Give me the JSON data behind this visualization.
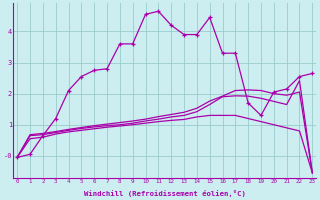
{
  "background_color": "#cceef0",
  "line_color": "#aa00aa",
  "grid_color": "#99cccc",
  "xlabel": "Windchill (Refroidissement éolien,°C)",
  "xticks": [
    0,
    1,
    2,
    3,
    4,
    5,
    6,
    7,
    8,
    9,
    10,
    11,
    12,
    13,
    14,
    15,
    16,
    17,
    18,
    19,
    20,
    21,
    22,
    23
  ],
  "yticks": [
    0,
    1,
    2,
    3,
    4
  ],
  "ylabels": [
    "-0",
    "1",
    "2",
    "3",
    "4"
  ],
  "ylim": [
    -0.7,
    4.9
  ],
  "xlim": [
    -0.3,
    23.3
  ],
  "curve1_x": [
    0,
    1,
    2,
    3,
    4,
    5,
    6,
    7,
    8,
    9,
    10,
    11,
    12,
    13,
    14,
    15,
    16,
    17,
    18,
    19,
    20,
    21,
    22,
    23
  ],
  "curve1_y": [
    -0.05,
    0.05,
    0.65,
    1.2,
    2.1,
    2.55,
    2.75,
    2.8,
    3.6,
    3.6,
    4.55,
    4.65,
    4.2,
    3.9,
    3.9,
    4.45,
    3.3,
    3.3,
    1.7,
    1.3,
    2.05,
    2.15,
    2.55,
    2.65
  ],
  "curve2_x": [
    0,
    1,
    2,
    3,
    4,
    5,
    6,
    7,
    8,
    9,
    10,
    11,
    12,
    13,
    14,
    15,
    16,
    17,
    18,
    19,
    20,
    21,
    22,
    23
  ],
  "curve2_y": [
    -0.05,
    0.65,
    0.68,
    0.75,
    0.82,
    0.88,
    0.93,
    0.97,
    1.0,
    1.05,
    1.12,
    1.18,
    1.25,
    1.3,
    1.42,
    1.65,
    1.9,
    1.93,
    1.92,
    1.85,
    1.75,
    1.65,
    2.42,
    -0.55
  ],
  "curve3_x": [
    0,
    1,
    2,
    3,
    4,
    5,
    6,
    7,
    8,
    9,
    10,
    11,
    12,
    13,
    14,
    15,
    16,
    17,
    18,
    19,
    20,
    21,
    22,
    23
  ],
  "curve3_y": [
    -0.05,
    0.68,
    0.72,
    0.78,
    0.85,
    0.91,
    0.97,
    1.02,
    1.07,
    1.12,
    1.18,
    1.26,
    1.33,
    1.4,
    1.53,
    1.76,
    1.92,
    2.1,
    2.12,
    2.1,
    2.0,
    1.95,
    2.05,
    -0.55
  ],
  "curve4_x": [
    0,
    1,
    2,
    3,
    4,
    5,
    6,
    7,
    8,
    9,
    10,
    11,
    12,
    13,
    14,
    15,
    16,
    17,
    18,
    19,
    20,
    21,
    22,
    23
  ],
  "curve4_y": [
    -0.05,
    0.55,
    0.6,
    0.7,
    0.77,
    0.82,
    0.87,
    0.92,
    0.96,
    1.0,
    1.05,
    1.1,
    1.14,
    1.17,
    1.25,
    1.3,
    1.3,
    1.3,
    1.2,
    1.1,
    1.0,
    0.9,
    0.8,
    -0.55
  ]
}
